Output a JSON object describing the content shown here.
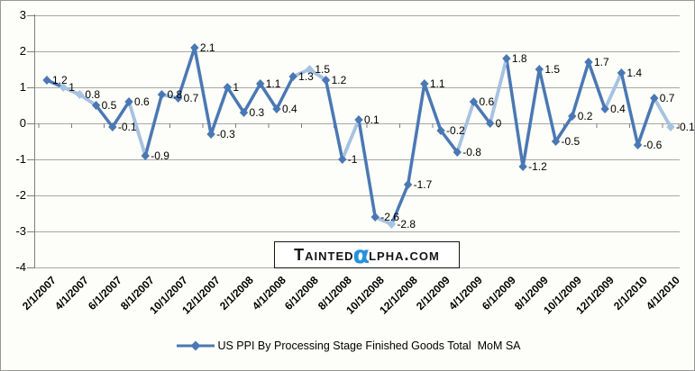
{
  "chart_data": {
    "type": "line",
    "title": "",
    "series": [
      {
        "name": "US PPI By Processing Stage Finished Goods Total  MoM SA",
        "values": [
          1.2,
          1,
          0.8,
          0.5,
          -0.1,
          0.6,
          -0.9,
          0.8,
          0.7,
          2.1,
          -0.3,
          1,
          0.3,
          1.1,
          0.4,
          1.3,
          1.5,
          1.2,
          -1,
          0.1,
          -2.6,
          -2.8,
          -1.7,
          1.1,
          -0.2,
          -0.8,
          0.6,
          0,
          1.8,
          -1.2,
          1.5,
          -0.5,
          0.2,
          1.7,
          0.4,
          1.4,
          -0.6,
          0.7,
          -0.1
        ]
      }
    ],
    "x": [
      "2/1/2007",
      "3/1/2007",
      "4/1/2007",
      "5/1/2007",
      "6/1/2007",
      "7/1/2007",
      "8/1/2007",
      "9/1/2007",
      "10/1/2007",
      "11/1/2007",
      "12/1/2007",
      "1/1/2008",
      "2/1/2008",
      "3/1/2008",
      "4/1/2008",
      "5/1/2008",
      "6/1/2008",
      "7/1/2008",
      "8/1/2008",
      "9/1/2008",
      "10/1/2008",
      "11/1/2008",
      "12/1/2008",
      "1/1/2009",
      "2/1/2009",
      "3/1/2009",
      "4/1/2009",
      "5/1/2009",
      "6/1/2009",
      "7/1/2009",
      "8/1/2009",
      "9/1/2009",
      "10/1/2009",
      "11/1/2009",
      "12/1/2009",
      "1/1/2010",
      "2/1/2010",
      "3/1/2010",
      "4/1/2010"
    ],
    "x_axis_tick_labels": [
      "2/1/2007",
      "4/1/2007",
      "6/1/2007",
      "8/1/2007",
      "10/1/2007",
      "12/1/2007",
      "2/1/2008",
      "4/1/2008",
      "6/1/2008",
      "8/1/2008",
      "10/1/2008",
      "12/1/2008",
      "2/1/2009",
      "4/1/2009",
      "6/1/2009",
      "8/1/2009",
      "10/1/2009",
      "12/1/2009",
      "2/1/2010",
      "4/1/2010"
    ],
    "x_tick_every": 2,
    "y_axis_ticks": [
      3,
      2,
      1,
      0,
      -1,
      -2,
      -3,
      -4
    ],
    "ylim": [
      -4,
      3
    ],
    "xlabel": "",
    "ylabel": "",
    "grid": "horizontal-major",
    "marker": "diamond",
    "data_labels_shown": true,
    "legend_position": "bottom",
    "colors": {
      "series_main": "#4a78b4",
      "series_highlight": "#a7c3e2"
    },
    "light_segments": [
      1,
      2,
      5,
      7,
      15,
      16,
      18,
      20,
      25,
      27,
      34,
      37
    ],
    "light_points": [
      1,
      2,
      16,
      21,
      38
    ]
  },
  "watermark": {
    "prefix": "Tainted",
    "alpha": "α",
    "suffix": "lpha.com",
    "alpha_color": "#2492db"
  },
  "colors": {
    "background": "#fdfdf9",
    "border": "#989898",
    "grid": "#a8a8a8",
    "axis": "#7f7f7f",
    "text": "#000000"
  }
}
